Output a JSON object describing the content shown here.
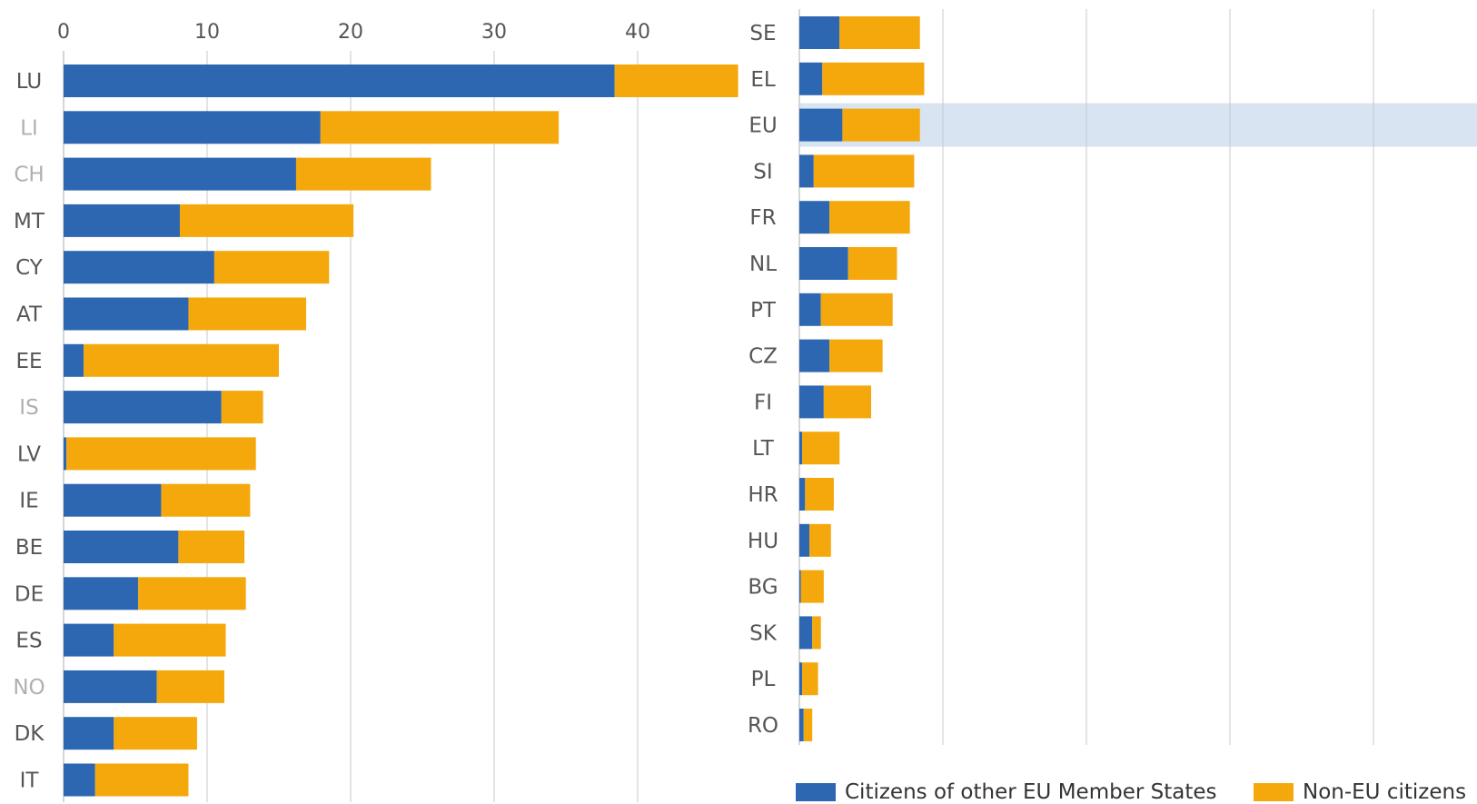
{
  "colors": {
    "eu_citizens": "#2e67b1",
    "non_eu": "#f5a80b",
    "highlight": "#d8e4f2",
    "grid": "#c9c9c9",
    "label_non_eu_member": "#b0b0b0",
    "label": "#555555"
  },
  "legend": [
    {
      "label": "Citizens of other EU Member States",
      "color": "#2e67b1"
    },
    {
      "label": "Non-EU citizens",
      "color": "#f5a80b"
    }
  ],
  "chart_data": [
    {
      "type": "bar",
      "orientation": "horizontal",
      "stacked": true,
      "title": "",
      "xlabel": "",
      "ylabel": "",
      "xlim": [
        0,
        47
      ],
      "xticks": [
        "0",
        "10",
        "20",
        "30",
        "40"
      ],
      "grid": true,
      "categories": [
        "LU",
        "LI",
        "CH",
        "MT",
        "CY",
        "AT",
        "EE",
        "IS",
        "LV",
        "IE",
        "BE",
        "DE",
        "ES",
        "NO",
        "DK",
        "IT"
      ],
      "non_eu_member_states": [
        "LI",
        "CH",
        "IS",
        "NO"
      ],
      "series": [
        {
          "name": "Citizens of other EU Member States",
          "values": [
            38.4,
            17.9,
            16.2,
            8.1,
            10.5,
            8.7,
            1.4,
            11.0,
            0.2,
            6.8,
            8.0,
            5.2,
            3.5,
            6.5,
            3.5,
            2.2
          ]
        },
        {
          "name": "Non-EU citizens",
          "values": [
            8.6,
            16.6,
            9.4,
            12.1,
            8.0,
            8.2,
            13.6,
            2.9,
            13.2,
            6.2,
            4.6,
            7.5,
            7.8,
            4.7,
            5.8,
            6.5
          ]
        }
      ]
    },
    {
      "type": "bar",
      "orientation": "horizontal",
      "stacked": true,
      "title": "",
      "xlabel": "",
      "ylabel": "",
      "xlim": [
        0,
        47
      ],
      "grid": true,
      "categories": [
        "SE",
        "EL",
        "EU",
        "SI",
        "FR",
        "NL",
        "PT",
        "CZ",
        "FI",
        "LT",
        "HR",
        "HU",
        "BG",
        "SK",
        "PL",
        "RO"
      ],
      "highlighted_category": "EU",
      "series": [
        {
          "name": "Citizens of other EU Member States",
          "values": [
            2.8,
            1.6,
            3.0,
            1.0,
            2.1,
            3.4,
            1.5,
            2.1,
            1.7,
            0.2,
            0.4,
            0.7,
            0.1,
            0.9,
            0.2,
            0.3
          ]
        },
        {
          "name": "Non-EU citizens",
          "values": [
            5.6,
            7.1,
            5.4,
            7.0,
            5.6,
            3.4,
            5.0,
            3.7,
            3.3,
            2.6,
            2.0,
            1.5,
            1.6,
            0.6,
            1.1,
            0.6
          ]
        }
      ]
    }
  ]
}
